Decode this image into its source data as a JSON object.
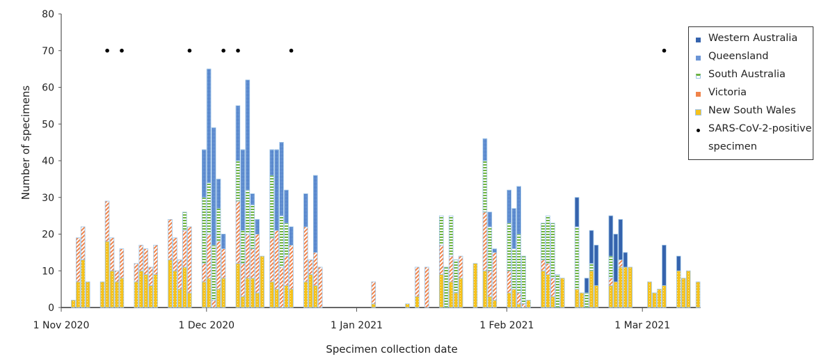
{
  "chart_data": {
    "type": "bar",
    "stacked": true,
    "xlabel": "Specimen collection date",
    "ylabel": "Number of specimens",
    "ylim": [
      0,
      80
    ],
    "yticks": [
      0,
      10,
      20,
      30,
      40,
      50,
      60,
      70,
      80
    ],
    "x_unit": "days since 1 Nov 2020",
    "xlim": [
      0,
      132
    ],
    "xticks": [
      {
        "day": 0,
        "label": "1 Nov 2020"
      },
      {
        "day": 30,
        "label": "1 Dec 2020"
      },
      {
        "day": 61,
        "label": "1 Jan 2021"
      },
      {
        "day": 92,
        "label": "1 Feb 2021"
      },
      {
        "day": 120,
        "label": "1 Mar 2021"
      }
    ],
    "series_order": [
      "New South Wales",
      "Victoria",
      "South Australia",
      "Queensland",
      "Western Australia"
    ],
    "series_colors": [
      "#f6c21c",
      "#f0834a",
      "#6db33f",
      "#4a7cc7",
      "#3563ad"
    ],
    "bars": [
      {
        "day": 2,
        "v": [
          2,
          0,
          0,
          0,
          0
        ]
      },
      {
        "day": 3,
        "v": [
          7,
          12,
          0,
          0,
          0
        ]
      },
      {
        "day": 4,
        "v": [
          13,
          9,
          0,
          0,
          0
        ]
      },
      {
        "day": 5,
        "v": [
          7,
          0,
          0,
          0,
          0
        ]
      },
      {
        "day": 8,
        "v": [
          7,
          0,
          0,
          0,
          0
        ]
      },
      {
        "day": 9,
        "v": [
          18,
          11,
          0,
          0,
          0
        ]
      },
      {
        "day": 10,
        "v": [
          10,
          9,
          0,
          0,
          0
        ]
      },
      {
        "day": 11,
        "v": [
          7,
          3,
          0,
          0,
          0
        ]
      },
      {
        "day": 12,
        "v": [
          8,
          8,
          0,
          0,
          0
        ]
      },
      {
        "day": 15,
        "v": [
          7,
          5,
          0,
          0,
          0
        ]
      },
      {
        "day": 16,
        "v": [
          10,
          7,
          0,
          0,
          0
        ]
      },
      {
        "day": 17,
        "v": [
          9,
          7,
          0,
          0,
          0
        ]
      },
      {
        "day": 18,
        "v": [
          6,
          5,
          0,
          0,
          0
        ]
      },
      {
        "day": 19,
        "v": [
          9,
          8,
          0,
          0,
          0
        ]
      },
      {
        "day": 22,
        "v": [
          13,
          11,
          0,
          0,
          0
        ]
      },
      {
        "day": 23,
        "v": [
          10,
          9,
          0,
          0,
          0
        ]
      },
      {
        "day": 24,
        "v": [
          5,
          8,
          0,
          0,
          0
        ]
      },
      {
        "day": 25,
        "v": [
          11,
          10,
          5,
          0,
          0
        ]
      },
      {
        "day": 26,
        "v": [
          4,
          18,
          0,
          0,
          0
        ]
      },
      {
        "day": 29,
        "v": [
          7,
          5,
          18,
          13,
          0
        ]
      },
      {
        "day": 30,
        "v": [
          8,
          12,
          14,
          31,
          0
        ]
      },
      {
        "day": 31,
        "v": [
          0,
          2,
          15,
          32,
          0
        ]
      },
      {
        "day": 32,
        "v": [
          5,
          13,
          9,
          8,
          0
        ]
      },
      {
        "day": 33,
        "v": [
          8,
          8,
          0,
          4,
          0
        ]
      },
      {
        "day": 36,
        "v": [
          12,
          17,
          11,
          15,
          0
        ]
      },
      {
        "day": 37,
        "v": [
          3,
          9,
          9,
          22,
          0
        ]
      },
      {
        "day": 38,
        "v": [
          8,
          12,
          12,
          30,
          0
        ]
      },
      {
        "day": 39,
        "v": [
          8,
          8,
          12,
          3,
          0
        ]
      },
      {
        "day": 40,
        "v": [
          4,
          16,
          0,
          4,
          0
        ]
      },
      {
        "day": 41,
        "v": [
          14,
          0,
          0,
          0,
          0
        ]
      },
      {
        "day": 43,
        "v": [
          7,
          12,
          17,
          7,
          0
        ]
      },
      {
        "day": 44,
        "v": [
          5,
          16,
          0,
          22,
          0
        ]
      },
      {
        "day": 45,
        "v": [
          0,
          11,
          14,
          20,
          0
        ]
      },
      {
        "day": 46,
        "v": [
          6,
          8,
          9,
          9,
          0
        ]
      },
      {
        "day": 47,
        "v": [
          5,
          12,
          0,
          5,
          0
        ]
      },
      {
        "day": 50,
        "v": [
          7,
          15,
          0,
          9,
          0
        ]
      },
      {
        "day": 51,
        "v": [
          9,
          4,
          0,
          0,
          0
        ]
      },
      {
        "day": 52,
        "v": [
          6,
          9,
          0,
          21,
          0
        ]
      },
      {
        "day": 53,
        "v": [
          0,
          11,
          0,
          0,
          0
        ]
      },
      {
        "day": 64,
        "v": [
          1,
          6,
          0,
          0,
          0
        ]
      },
      {
        "day": 71,
        "v": [
          1,
          0,
          0,
          0,
          0
        ]
      },
      {
        "day": 73,
        "v": [
          3,
          8,
          0,
          0,
          0
        ]
      },
      {
        "day": 75,
        "v": [
          0,
          11,
          0,
          0,
          0
        ]
      },
      {
        "day": 78,
        "v": [
          9,
          8,
          8,
          0,
          0
        ]
      },
      {
        "day": 79,
        "v": [
          0,
          0,
          11,
          0,
          0
        ]
      },
      {
        "day": 80,
        "v": [
          7,
          7,
          11,
          0,
          0
        ]
      },
      {
        "day": 81,
        "v": [
          4,
          0,
          9,
          0,
          0
        ]
      },
      {
        "day": 82,
        "v": [
          8,
          6,
          0,
          0,
          0
        ]
      },
      {
        "day": 85,
        "v": [
          12,
          0,
          0,
          0,
          0
        ]
      },
      {
        "day": 87,
        "v": [
          10,
          16,
          14,
          6,
          0
        ]
      },
      {
        "day": 88,
        "v": [
          3,
          7,
          12,
          4,
          0
        ]
      },
      {
        "day": 89,
        "v": [
          2,
          13,
          0,
          1,
          0
        ]
      },
      {
        "day": 92,
        "v": [
          4,
          6,
          13,
          9,
          0
        ]
      },
      {
        "day": 93,
        "v": [
          5,
          0,
          11,
          11,
          0
        ]
      },
      {
        "day": 94,
        "v": [
          1,
          3,
          16,
          13,
          0
        ]
      },
      {
        "day": 95,
        "v": [
          0,
          1,
          13,
          0,
          0
        ]
      },
      {
        "day": 96,
        "v": [
          2,
          0,
          0,
          0,
          0
        ]
      },
      {
        "day": 99,
        "v": [
          10,
          3,
          10,
          0,
          0
        ]
      },
      {
        "day": 100,
        "v": [
          9,
          3,
          13,
          0,
          0
        ]
      },
      {
        "day": 101,
        "v": [
          3,
          5,
          15,
          0,
          0
        ]
      },
      {
        "day": 102,
        "v": [
          0,
          0,
          9,
          0,
          0
        ]
      },
      {
        "day": 103,
        "v": [
          8,
          0,
          0,
          0,
          0
        ]
      },
      {
        "day": 106,
        "v": [
          5,
          0,
          17,
          0,
          8
        ]
      },
      {
        "day": 107,
        "v": [
          4,
          0,
          0,
          0,
          0
        ]
      },
      {
        "day": 108,
        "v": [
          0,
          0,
          4,
          0,
          4
        ]
      },
      {
        "day": 109,
        "v": [
          10,
          0,
          2,
          0,
          9
        ]
      },
      {
        "day": 110,
        "v": [
          6,
          0,
          0,
          0,
          11
        ]
      },
      {
        "day": 113,
        "v": [
          6,
          2,
          6,
          0,
          11
        ]
      },
      {
        "day": 114,
        "v": [
          7,
          0,
          0,
          0,
          13
        ]
      },
      {
        "day": 115,
        "v": [
          11,
          2,
          0,
          0,
          11
        ]
      },
      {
        "day": 116,
        "v": [
          11,
          0,
          0,
          0,
          4
        ]
      },
      {
        "day": 117,
        "v": [
          11,
          0,
          0,
          0,
          0
        ]
      },
      {
        "day": 121,
        "v": [
          7,
          0,
          0,
          0,
          0
        ]
      },
      {
        "day": 122,
        "v": [
          4,
          0,
          0,
          0,
          0
        ]
      },
      {
        "day": 123,
        "v": [
          5,
          0,
          0,
          0,
          0
        ]
      },
      {
        "day": 124,
        "v": [
          6,
          0,
          0,
          0,
          11
        ]
      },
      {
        "day": 127,
        "v": [
          10,
          0,
          0,
          0,
          4
        ]
      },
      {
        "day": 128,
        "v": [
          8,
          0,
          0,
          0,
          0
        ]
      },
      {
        "day": 129,
        "v": [
          10,
          0,
          0,
          0,
          0
        ]
      },
      {
        "day": 131,
        "v": [
          7,
          0,
          0,
          0,
          0
        ]
      }
    ],
    "positive_markers": {
      "y": 70,
      "days": [
        9,
        12,
        26,
        33,
        36,
        47,
        124
      ]
    },
    "legend": {
      "placement": "top-right",
      "items": [
        "Western Australia",
        "Queensland",
        "South Australia",
        "Victoria",
        "New South Wales",
        "SARS-CoV-2-positive",
        "specimen"
      ]
    }
  }
}
